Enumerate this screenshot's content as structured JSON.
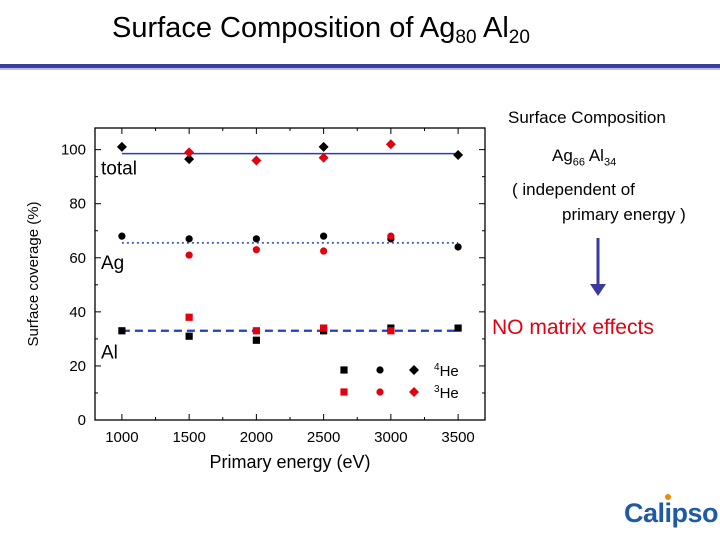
{
  "title": {
    "main": "Surface  Composition  of  ",
    "ag": "Ag",
    "ag_sub": "80",
    "al": " Al",
    "al_sub": "20"
  },
  "side_text": {
    "line1": "Surface Composition",
    "ag": "Ag",
    "ag_sub": "66",
    "al": " Al",
    "al_sub": "34",
    "line3": "( independent of",
    "line4": "primary energy )",
    "note": "NO  matrix effects"
  },
  "logo": {
    "text": "Calipso"
  },
  "colors": {
    "accent_bar": "#3a3f99",
    "fit_line": "#1f3fc4",
    "red": "#e3000f",
    "black": "#000000",
    "arrow": "#3a3a9a"
  },
  "chart_data": {
    "type": "scatter",
    "xlabel": "Primary energy (eV)",
    "ylabel": "Surface coverage (%)",
    "xlim": [
      800,
      3700
    ],
    "ylim": [
      0,
      108
    ],
    "xticks": [
      1000,
      1500,
      2000,
      2500,
      3000,
      3500
    ],
    "yticks": [
      0,
      20,
      40,
      60,
      80,
      100
    ],
    "group_labels": [
      {
        "text": "total",
        "y": 93
      },
      {
        "text": "Ag",
        "y": 58
      },
      {
        "text": "Al",
        "y": 25
      }
    ],
    "series": [
      {
        "group": "total",
        "probe": "4He",
        "color": "#000000",
        "marker": "diamond",
        "x": [
          1000,
          1500,
          2500,
          3500
        ],
        "y": [
          101,
          96.5,
          101,
          98
        ]
      },
      {
        "group": "total",
        "probe": "3He",
        "color": "#e3000f",
        "marker": "diamond",
        "x": [
          1500,
          2000,
          2500,
          3000
        ],
        "y": [
          99,
          96,
          97,
          102
        ]
      },
      {
        "group": "Ag",
        "probe": "4He",
        "color": "#000000",
        "marker": "circle",
        "x": [
          1000,
          1500,
          2000,
          2500,
          3000,
          3500
        ],
        "y": [
          68,
          67,
          67,
          68,
          67,
          64
        ]
      },
      {
        "group": "Ag",
        "probe": "3He",
        "color": "#e3000f",
        "marker": "circle",
        "x": [
          1500,
          2000,
          2500,
          3000
        ],
        "y": [
          61,
          63,
          62.5,
          68
        ]
      },
      {
        "group": "Al",
        "probe": "4He",
        "color": "#000000",
        "marker": "square",
        "x": [
          1000,
          1500,
          2000,
          2500,
          3000,
          3500
        ],
        "y": [
          33,
          31,
          29.5,
          33,
          34,
          34
        ]
      },
      {
        "group": "Al",
        "probe": "3He",
        "color": "#e3000f",
        "marker": "square",
        "x": [
          1500,
          2000,
          2500,
          3000
        ],
        "y": [
          38,
          33,
          34,
          33
        ]
      }
    ],
    "fit_lines": [
      {
        "group": "total",
        "y": 98.5,
        "style": "solid",
        "x_range": [
          1000,
          3500
        ]
      },
      {
        "group": "Ag",
        "y": 65.5,
        "style": "dotted",
        "x_range": [
          1000,
          3500
        ]
      },
      {
        "group": "Al",
        "y": 33,
        "style": "dashed",
        "x_range": [
          1000,
          3500
        ]
      }
    ],
    "legend": {
      "placement": "bottom-right",
      "rows": [
        {
          "label_sup": "4",
          "label": "He",
          "color": "#000000"
        },
        {
          "label_sup": "3",
          "label": "He",
          "color": "#e3000f"
        }
      ]
    }
  }
}
